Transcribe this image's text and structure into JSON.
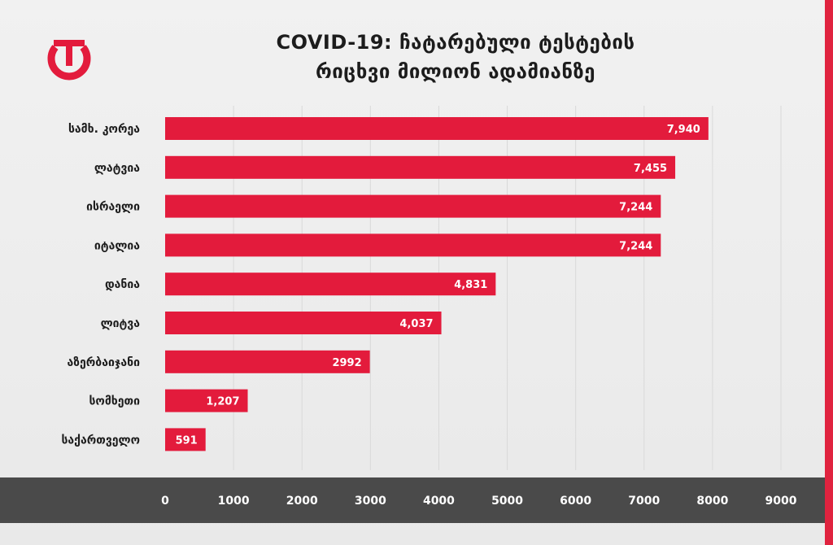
{
  "header": {
    "title_line1": "COVID-19: ჩატარებული ტესტების",
    "title_line2": "რიცხვი მილიონ ადამიანზე"
  },
  "colors": {
    "bar": "#e31b3c",
    "axis_band": "#4a4a4a",
    "grid": "#d9d9d9",
    "logo": "#e31b3c"
  },
  "logo": {
    "icon": "power-logo-icon"
  },
  "chart_data": {
    "type": "bar",
    "orientation": "horizontal",
    "title": "COVID-19: ჩატარებული ტესტების რიცხვი მილიონ ადამიანზე",
    "categories": [
      "სამხ. კორეა",
      "ლატვია",
      "ისრაელი",
      "იტალია",
      "დანია",
      "ლიტვა",
      "აზერბაიჯანი",
      "სომხეთი",
      "საქართველო"
    ],
    "values": [
      7940,
      7455,
      7244,
      7244,
      4831,
      4037,
      2992,
      1207,
      591
    ],
    "value_labels": [
      "7,940",
      "7,455",
      "7,244",
      "7,244",
      "4,831",
      "4,037",
      "2992",
      "1,207",
      "591"
    ],
    "x_ticks": [
      0,
      1000,
      2000,
      3000,
      4000,
      5000,
      6000,
      7000,
      8000,
      9000
    ],
    "xlim": [
      0,
      9000
    ],
    "grid": true,
    "xlabel": "",
    "ylabel": ""
  }
}
